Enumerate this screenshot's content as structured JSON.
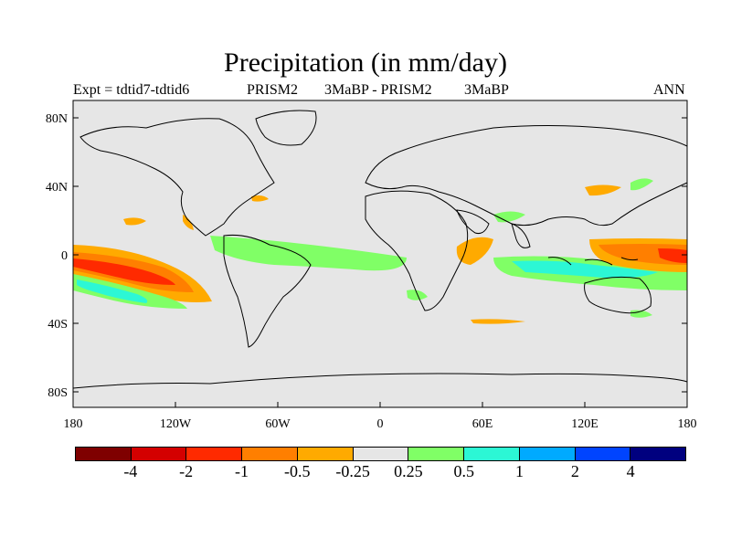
{
  "title": "Precipitation (in mm/day)",
  "subtitle": {
    "experiment": "Expt = tdtid7-tdtid6",
    "model_a": "PRISM2",
    "period_a": "3MaBP - PRISM2",
    "period_b": "3MaBP",
    "season": "ANN"
  },
  "map": {
    "background": "#e6e6e6",
    "lat_ticks": [
      "80N",
      "40N",
      "0",
      "40S",
      "80S"
    ],
    "lon_ticks": [
      "180",
      "120W",
      "60W",
      "0",
      "60E",
      "120E",
      "180"
    ]
  },
  "legend": {
    "colors": [
      "#7f0000",
      "#d40000",
      "#ff2a00",
      "#ff7f00",
      "#ffaa00",
      "#e6e6e6",
      "#80ff66",
      "#2cf7d5",
      "#00aaff",
      "#0044ff",
      "#00007f"
    ],
    "labels": [
      "-4",
      "-2",
      "-1",
      "-0.5",
      "-0.25",
      "0.25",
      "0.5",
      "1",
      "2",
      "4"
    ]
  }
}
